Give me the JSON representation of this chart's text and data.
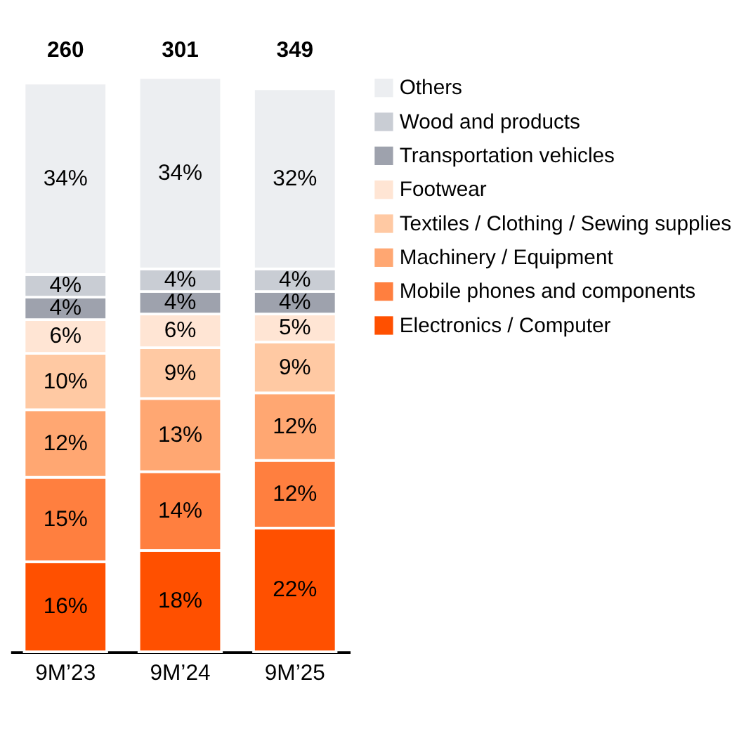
{
  "chart_data": {
    "type": "bar",
    "stacked": true,
    "categories": [
      "9M’23",
      "9M’24",
      "9M’25"
    ],
    "series": [
      {
        "name": "Electronics / Computer",
        "color": "#ff5000",
        "values": [
          16,
          18,
          22
        ],
        "value_labels": [
          "16%",
          "18%",
          "22%"
        ]
      },
      {
        "name": "Mobile phones and components",
        "color": "#ff7f3f",
        "values": [
          15,
          14,
          12
        ],
        "value_labels": [
          "15%",
          "14%",
          "12%"
        ]
      },
      {
        "name": "Machinery / Equipment",
        "color": "#ffa772",
        "values": [
          12,
          13,
          12
        ],
        "value_labels": [
          "12%",
          "13%",
          "12%"
        ]
      },
      {
        "name": "Textiles / Clothing / Sewing supplies",
        "color": "#ffc9a3",
        "values": [
          10,
          9,
          9
        ],
        "value_labels": [
          "10%",
          "9%",
          "9%"
        ]
      },
      {
        "name": "Footwear",
        "color": "#ffe5d4",
        "values": [
          6,
          6,
          5
        ],
        "value_labels": [
          "6%",
          "6%",
          "5%"
        ]
      },
      {
        "name": "Transportation vehicles",
        "color": "#9ea2ad",
        "values": [
          4,
          4,
          4
        ],
        "value_labels": [
          "4%",
          "4%",
          "4%"
        ]
      },
      {
        "name": "Wood and products",
        "color": "#c9cdd4",
        "values": [
          4,
          4,
          4
        ],
        "value_labels": [
          "4%",
          "4%",
          "4%"
        ]
      },
      {
        "name": "Others",
        "color": "#eceef1",
        "values": [
          34,
          34,
          32
        ],
        "value_labels": [
          "34%",
          "34%",
          "32%"
        ]
      }
    ],
    "annotations": [
      "260",
      "301",
      "349"
    ],
    "ylim": [
      0,
      102
    ],
    "tick_labels": "x",
    "grid": false,
    "legend": "right"
  }
}
